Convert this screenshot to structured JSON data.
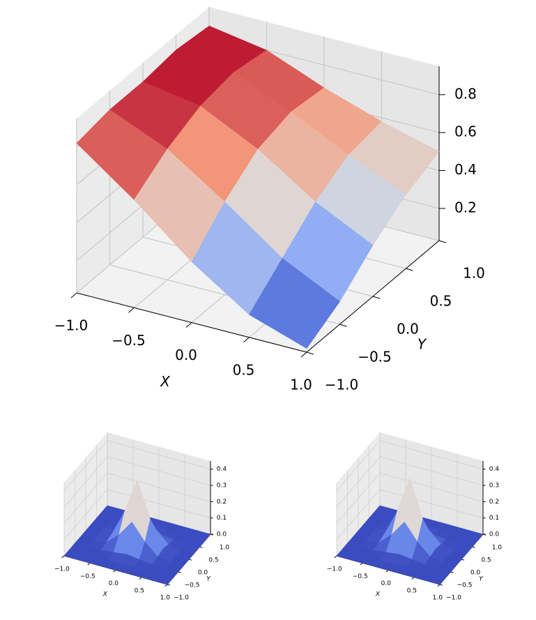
{
  "chart_data": [
    {
      "type": "surface3d",
      "cmap": "coolwarm",
      "xlabel": "X",
      "ylabel": "Y",
      "x": [
        -1,
        -0.5,
        0,
        0.5,
        1
      ],
      "y": [
        -1,
        -0.5,
        0,
        0.5,
        1
      ],
      "z": [
        [
          0.82,
          0.85,
          0.85,
          0.87,
          0.85
        ],
        [
          0.6,
          0.72,
          0.8,
          0.83,
          0.8
        ],
        [
          0.35,
          0.52,
          0.65,
          0.7,
          0.68
        ],
        [
          0.15,
          0.3,
          0.45,
          0.55,
          0.58
        ],
        [
          0.05,
          0.15,
          0.3,
          0.42,
          0.5
        ]
      ],
      "xlim": [
        -1,
        1
      ],
      "ylim": [
        -1,
        1
      ],
      "zlim": [
        0.03,
        0.95
      ],
      "xticks": [
        {
          "value": -1,
          "label": "−1.0"
        },
        {
          "value": -0.5,
          "label": "−0.5"
        },
        {
          "value": 0,
          "label": "0.0"
        },
        0.5,
        {
          "value": 1,
          "label": "1.0"
        }
      ],
      "yticks": [
        {
          "value": -1,
          "label": "−1.0"
        },
        {
          "value": -0.5,
          "label": "−0.5"
        },
        {
          "value": 0,
          "label": "0.0"
        },
        0.5,
        {
          "value": 1,
          "label": "1.0"
        }
      ],
      "zticks": [
        0.2,
        0.4,
        0.6,
        0.8
      ],
      "grid": true
    },
    {
      "type": "surface3d",
      "cmap": "coolwarm",
      "xlabel": "X",
      "ylabel": "Y",
      "x": [
        -1,
        -0.75,
        -0.5,
        -0.25,
        0,
        0.25,
        0.5,
        0.75,
        1
      ],
      "y": [
        -1,
        -0.75,
        -0.5,
        -0.25,
        0,
        0.25,
        0.5,
        0.75,
        1
      ],
      "z": [
        [
          0,
          0,
          0,
          0,
          0,
          0,
          0,
          0,
          0
        ],
        [
          0,
          0,
          0,
          0,
          0,
          0,
          0,
          0,
          0
        ],
        [
          0,
          0,
          0,
          0.01,
          0.02,
          0.01,
          0,
          0,
          0
        ],
        [
          0,
          0,
          0.01,
          0.08,
          0.18,
          0.08,
          0.01,
          0,
          0
        ],
        [
          0,
          0,
          0.02,
          0.18,
          0.4,
          0.18,
          0.02,
          0,
          0
        ],
        [
          0,
          0,
          0.01,
          0.08,
          0.18,
          0.08,
          0.01,
          0,
          0
        ],
        [
          0,
          0,
          0,
          0.01,
          0.02,
          0.01,
          0,
          0,
          0
        ],
        [
          0,
          0,
          0,
          0,
          0,
          0,
          0,
          0,
          0
        ],
        [
          0,
          0,
          0,
          0,
          0,
          0,
          0,
          0,
          0
        ]
      ],
      "xlim": [
        -1,
        1
      ],
      "ylim": [
        -1,
        1
      ],
      "zlim": [
        0,
        0.45
      ],
      "xticks": [
        {
          "value": -1,
          "label": "−1.0"
        },
        {
          "value": -0.5,
          "label": "−0.5"
        },
        {
          "value": 0,
          "label": "0.0"
        },
        0.5,
        {
          "value": 1,
          "label": "1.0"
        }
      ],
      "yticks": [
        {
          "value": -1,
          "label": "−1.0"
        },
        {
          "value": -0.5,
          "label": "−0.5"
        },
        {
          "value": 0,
          "label": "0.0"
        },
        0.5,
        {
          "value": 1,
          "label": "1.0"
        }
      ],
      "zticks": [
        {
          "value": 0,
          "label": "0.0"
        },
        0.1,
        0.2,
        0.3,
        0.4
      ],
      "grid": true
    },
    {
      "type": "surface3d",
      "cmap": "coolwarm",
      "xlabel": "X",
      "ylabel": "Y",
      "x": [
        -1,
        -0.75,
        -0.5,
        -0.25,
        0,
        0.25,
        0.5,
        0.75,
        1
      ],
      "y": [
        -1,
        -0.75,
        -0.5,
        -0.25,
        0,
        0.25,
        0.5,
        0.75,
        1
      ],
      "z": [
        [
          0,
          0,
          0,
          0,
          0,
          0,
          0,
          0,
          0
        ],
        [
          0,
          0,
          0,
          0,
          0,
          0,
          0,
          0,
          0
        ],
        [
          0,
          0,
          0,
          0.01,
          0.02,
          0.01,
          0,
          0,
          0
        ],
        [
          0,
          0,
          0.01,
          0.08,
          0.18,
          0.08,
          0.01,
          0,
          0
        ],
        [
          0,
          0,
          0.02,
          0.18,
          0.41,
          0.18,
          0.02,
          0,
          0
        ],
        [
          0,
          0,
          0.01,
          0.08,
          0.18,
          0.08,
          0.01,
          0,
          0
        ],
        [
          0,
          0,
          0,
          0.01,
          0.02,
          0.01,
          0,
          0,
          0
        ],
        [
          0,
          0,
          0,
          0,
          0,
          0,
          0,
          0,
          0
        ],
        [
          0,
          0,
          0,
          0,
          0,
          0,
          0,
          0,
          0
        ]
      ],
      "xlim": [
        -1,
        1
      ],
      "ylim": [
        -1,
        1
      ],
      "zlim": [
        0,
        0.45
      ],
      "xticks": [
        {
          "value": -1,
          "label": "−1.0"
        },
        {
          "value": -0.5,
          "label": "−0.5"
        },
        {
          "value": 0,
          "label": "0.0"
        },
        0.5,
        {
          "value": 1,
          "label": "1.0"
        }
      ],
      "yticks": [
        {
          "value": -1,
          "label": "−1.0"
        },
        {
          "value": -0.5,
          "label": "−0.5"
        },
        {
          "value": 0,
          "label": "0.0"
        },
        0.5,
        {
          "value": 1,
          "label": "1.0"
        }
      ],
      "zticks": [
        {
          "value": 0,
          "label": "0.0"
        },
        0.1,
        0.2,
        0.3,
        0.4
      ],
      "grid": true
    }
  ]
}
